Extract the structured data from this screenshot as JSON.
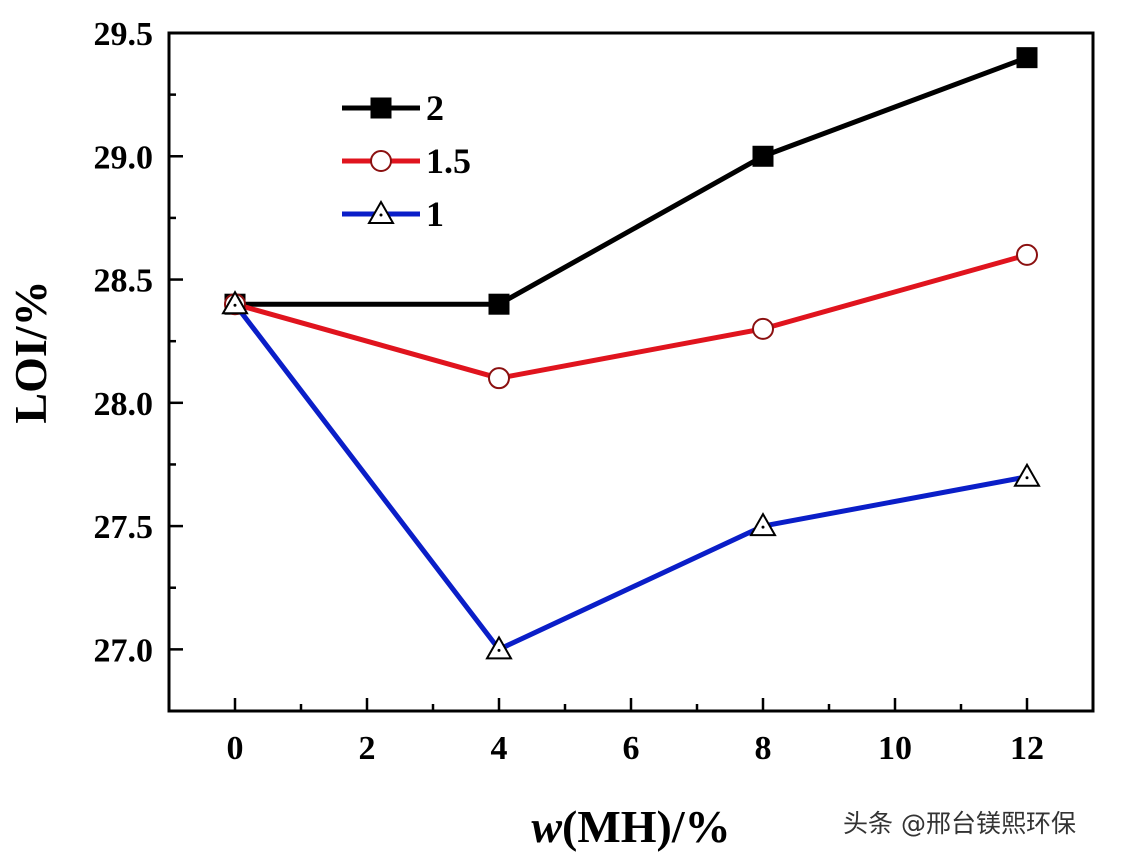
{
  "chart_data": {
    "type": "line",
    "title": "",
    "xlabel_italic": "w",
    "xlabel_rest": "(MH)/%",
    "ylabel": "LOI/%",
    "x": [
      0,
      4,
      8,
      12
    ],
    "xlim": [
      -1,
      13
    ],
    "ylim": [
      26.75,
      29.5
    ],
    "xticks": [
      0,
      2,
      4,
      6,
      8,
      10,
      12
    ],
    "xtick_labels": [
      "0",
      "2",
      "4",
      "6",
      "8",
      "10",
      "12"
    ],
    "xminor_step": 1,
    "yticks": [
      27.0,
      27.5,
      28.0,
      28.5,
      29.0,
      29.5
    ],
    "ytick_labels": [
      "27.0",
      "27.5",
      "28.0",
      "28.5",
      "29.0",
      "29.5"
    ],
    "yminor_step": 0.25,
    "grid": false,
    "legend_position": "top-left",
    "series": [
      {
        "name": "2",
        "values": [
          28.4,
          28.4,
          29.0,
          29.4
        ],
        "color": "#000000",
        "marker": "square-filled"
      },
      {
        "name": "1.5",
        "values": [
          28.4,
          28.1,
          28.3,
          28.6
        ],
        "color": "#e0141e",
        "marker": "circle-open"
      },
      {
        "name": "1",
        "values": [
          28.4,
          27.0,
          27.5,
          27.7
        ],
        "color": "#0a1ec8",
        "marker": "triangle-open"
      }
    ]
  },
  "watermark": "头条 @邢台镁熙环保"
}
